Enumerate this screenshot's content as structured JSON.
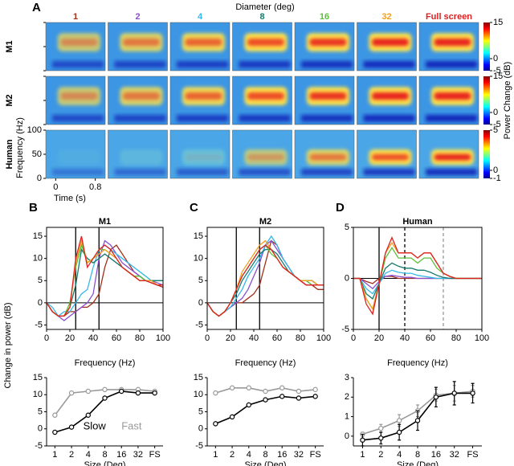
{
  "panel_a": {
    "label": "A",
    "title": "Diameter (deg)",
    "columns": [
      {
        "label": "1",
        "color": "#a0301c"
      },
      {
        "label": "2",
        "color": "#8a4fd0"
      },
      {
        "label": "4",
        "color": "#35b8e8"
      },
      {
        "label": "8",
        "color": "#147a6c"
      },
      {
        "label": "16",
        "color": "#5cc23a"
      },
      {
        "label": "32",
        "color": "#f0a020"
      },
      {
        "label": "Full screen",
        "color": "#e02020"
      }
    ],
    "rows": [
      {
        "label": "M1",
        "clim": [
          -5,
          15
        ],
        "cticks": [
          15,
          0,
          -5
        ]
      },
      {
        "label": "M2",
        "clim": [
          -5,
          15
        ],
        "cticks": [
          15,
          0,
          -5
        ]
      },
      {
        "label": "Human",
        "clim": [
          -1,
          5
        ],
        "cticks": [
          5,
          0,
          -1
        ]
      }
    ],
    "ylabel": "Frequency (Hz)",
    "ylim": [
      0,
      100
    ],
    "yticks": [
      0,
      50,
      100
    ],
    "xlabel": "Time (s)",
    "xlim": [
      -0.2,
      1.0
    ],
    "xticks": [
      0,
      0.8
    ],
    "clabel": "Power Change (dB)"
  },
  "ylabel": "Change in power (dB)",
  "chart_data": [
    {
      "type": "line",
      "label": "B",
      "title": "M1",
      "xlabel": "Frequency (Hz)",
      "x": [
        0,
        5,
        10,
        15,
        20,
        25,
        30,
        35,
        40,
        45,
        50,
        55,
        60,
        65,
        70,
        75,
        80,
        85,
        90,
        95,
        100
      ],
      "xlim": [
        0,
        100
      ],
      "xticks": [
        0,
        20,
        40,
        60,
        80,
        100
      ],
      "ylim": [
        -6,
        17
      ],
      "yticks": [
        -5,
        0,
        5,
        10,
        15
      ],
      "vlines": [
        {
          "value": 25,
          "color": "#000"
        },
        {
          "value": 45,
          "color": "#000"
        }
      ],
      "series": [
        {
          "color": "#a0301c",
          "values": [
            0,
            -2,
            -3,
            -3,
            -2,
            -2,
            -1,
            -1,
            0,
            2,
            8,
            12,
            13,
            11,
            9,
            7,
            6,
            5,
            4.5,
            4,
            3.5
          ]
        },
        {
          "color": "#8a4fd0",
          "values": [
            0,
            -2,
            -3,
            -4,
            -3,
            -2,
            -1,
            0,
            2,
            10,
            14,
            13,
            11,
            9,
            8,
            7,
            6,
            5,
            5,
            4.5,
            4
          ]
        },
        {
          "color": "#35b8e8",
          "values": [
            0,
            -1,
            -3,
            -2,
            -2,
            0,
            2,
            3,
            8,
            12,
            13,
            12,
            11,
            10,
            9,
            8,
            7,
            6,
            5,
            5,
            5
          ]
        },
        {
          "color": "#147a6c",
          "values": [
            0,
            -2,
            -3,
            -3,
            -1,
            4,
            12,
            10,
            9,
            10,
            11,
            10,
            9,
            8,
            7,
            6,
            6,
            5,
            5,
            5,
            5
          ]
        },
        {
          "color": "#5cc23a",
          "values": [
            0,
            -2,
            -3,
            -3,
            0,
            8,
            13,
            9,
            10,
            12,
            12,
            11,
            10,
            8,
            7,
            6,
            6,
            5,
            5,
            4,
            4
          ]
        },
        {
          "color": "#f0a020",
          "values": [
            0,
            -2,
            -3,
            -3,
            -1,
            9,
            14,
            9,
            10,
            11,
            12,
            11,
            10,
            8,
            7,
            6,
            5,
            5,
            5,
            4,
            4
          ]
        },
        {
          "color": "#e02020",
          "values": [
            0,
            -2,
            -3,
            -3,
            -1,
            10,
            15,
            8,
            10,
            12,
            13,
            12,
            10,
            8,
            7,
            6,
            5,
            5,
            4.5,
            4,
            4
          ]
        }
      ]
    },
    {
      "type": "line",
      "label": "C",
      "title": "M2",
      "xlabel": "Frequency (Hz)",
      "x": [
        0,
        5,
        10,
        15,
        20,
        25,
        30,
        35,
        40,
        45,
        50,
        55,
        60,
        65,
        70,
        75,
        80,
        85,
        90,
        95,
        100
      ],
      "xlim": [
        0,
        100
      ],
      "xticks": [
        0,
        20,
        40,
        60,
        80,
        100
      ],
      "ylim": [
        -6,
        17
      ],
      "yticks": [
        -5,
        0,
        5,
        10,
        15
      ],
      "vlines": [
        {
          "value": 25,
          "color": "#000"
        },
        {
          "value": 45,
          "color": "#000"
        }
      ],
      "series": [
        {
          "color": "#a0301c",
          "values": [
            0,
            -2,
            -3,
            -2,
            -1,
            0,
            0,
            1,
            2,
            4,
            9,
            14,
            13,
            10,
            8,
            6,
            5,
            4,
            4,
            3,
            3
          ]
        },
        {
          "color": "#8a4fd0",
          "values": [
            0,
            -2,
            -3,
            -2,
            -1,
            0,
            1,
            3,
            6,
            9,
            13,
            14,
            12,
            10,
            8,
            6,
            5,
            5,
            4,
            4,
            4
          ]
        },
        {
          "color": "#35b8e8",
          "values": [
            0,
            -2,
            -3,
            -2,
            -1,
            1,
            3,
            6,
            8,
            10,
            13,
            15,
            13,
            10,
            8,
            6,
            5,
            5,
            5,
            4,
            4
          ]
        },
        {
          "color": "#147a6c",
          "values": [
            0,
            -2,
            -3,
            -2,
            0,
            2,
            5,
            7,
            9,
            11,
            12,
            12,
            11,
            9,
            7,
            6,
            5,
            5,
            5,
            4,
            4
          ]
        },
        {
          "color": "#5cc23a",
          "values": [
            0,
            -2,
            -3,
            -2,
            0,
            3,
            6,
            8,
            10,
            12,
            13,
            11,
            10,
            8,
            7,
            6,
            5,
            5,
            4,
            4,
            4
          ]
        },
        {
          "color": "#f0a020",
          "values": [
            0,
            -2,
            -3,
            -2,
            0,
            3,
            7,
            9,
            11,
            13,
            14,
            12,
            10,
            8,
            7,
            6,
            5,
            5,
            5,
            4,
            4
          ]
        },
        {
          "color": "#e02020",
          "values": [
            0,
            -2,
            -3,
            -2,
            0,
            3,
            6,
            8,
            10,
            12,
            13,
            12,
            10,
            8,
            7,
            6,
            5,
            4,
            4,
            4,
            4
          ]
        }
      ]
    },
    {
      "type": "line",
      "label": "D",
      "title": "Human",
      "xlabel": "Frequency (Hz)",
      "x": [
        0,
        5,
        10,
        15,
        20,
        25,
        30,
        35,
        40,
        45,
        50,
        55,
        60,
        65,
        70,
        75,
        80,
        85,
        90,
        95,
        100
      ],
      "xlim": [
        0,
        100
      ],
      "xticks": [
        0,
        20,
        40,
        60,
        80,
        100
      ],
      "ylim": [
        -5,
        5
      ],
      "yticks": [
        -5,
        0,
        5
      ],
      "vlines": [
        {
          "value": 20,
          "color": "#000"
        },
        {
          "value": 40,
          "color": "#000",
          "dash": true
        },
        {
          "value": 70,
          "color": "#999",
          "dash": true
        }
      ],
      "series": [
        {
          "color": "#a0301c",
          "values": [
            0,
            0,
            -0.3,
            -0.5,
            0,
            0.2,
            0.2,
            0,
            0,
            0,
            0,
            0,
            0,
            0,
            0,
            0,
            0,
            0,
            0,
            0,
            0
          ]
        },
        {
          "color": "#8a4fd0",
          "values": [
            0,
            0,
            -0.5,
            -1,
            -0.3,
            0.2,
            0.3,
            0.2,
            0.1,
            0.1,
            0,
            0,
            0,
            0,
            0,
            0,
            0,
            0,
            0,
            0,
            0
          ]
        },
        {
          "color": "#35b8e8",
          "values": [
            0,
            0,
            -1,
            -1.5,
            -0.5,
            0.5,
            0.8,
            0.6,
            0.5,
            0.5,
            0.3,
            0.2,
            0.1,
            0,
            0,
            0,
            0,
            0,
            0,
            0,
            0
          ]
        },
        {
          "color": "#147a6c",
          "values": [
            0,
            0,
            -1.5,
            -2,
            -0.5,
            1,
            1.5,
            1.2,
            1,
            1,
            0.8,
            0.8,
            0.6,
            0.3,
            0.1,
            0,
            0,
            0,
            0,
            0,
            0
          ]
        },
        {
          "color": "#5cc23a",
          "values": [
            0,
            0,
            -2,
            -3,
            -0.5,
            2,
            3,
            2,
            2,
            2,
            1.5,
            2,
            2,
            1,
            0.5,
            0.2,
            0,
            0,
            0,
            0,
            0
          ]
        },
        {
          "color": "#f0a020",
          "values": [
            0,
            0,
            -2,
            -3,
            -0.5,
            2.5,
            3.5,
            2.5,
            2.5,
            2.5,
            2,
            2.5,
            2.5,
            1.5,
            0.5,
            0.2,
            0,
            0,
            0,
            0,
            0
          ]
        },
        {
          "color": "#e02020",
          "values": [
            0,
            0,
            -2.5,
            -3.5,
            -0.5,
            2.5,
            4,
            2.5,
            2.5,
            2.5,
            2,
            2.5,
            2.5,
            1.5,
            0.5,
            0.2,
            0,
            0,
            0,
            0,
            0
          ]
        }
      ]
    },
    {
      "type": "dotline",
      "xlabel": "Size (Deg)",
      "categories": [
        "1",
        "2",
        "4",
        "8",
        "16",
        "32",
        "FS"
      ],
      "ylim": [
        -5,
        15
      ],
      "yticks": [
        -5,
        0,
        5,
        10,
        15
      ],
      "series": [
        {
          "name": "Slow",
          "color": "#000",
          "values": [
            -1,
            0.5,
            4,
            9,
            11,
            10.5,
            10.5
          ]
        },
        {
          "name": "Fast",
          "color": "#999",
          "values": [
            4,
            10.5,
            11,
            11.5,
            11.5,
            11.5,
            11
          ]
        }
      ]
    },
    {
      "type": "dotline",
      "xlabel": "Size (Deg)",
      "categories": [
        "1",
        "2",
        "4",
        "8",
        "16",
        "32",
        "FS"
      ],
      "ylim": [
        -5,
        15
      ],
      "yticks": [
        -5,
        0,
        5,
        10,
        15
      ],
      "series": [
        {
          "color": "#000",
          "values": [
            1.5,
            3.5,
            7,
            8.5,
            9.5,
            9,
            9.5
          ]
        },
        {
          "color": "#999",
          "values": [
            10.5,
            12,
            12,
            11,
            12,
            11,
            11.5
          ]
        }
      ]
    },
    {
      "type": "dotline",
      "xlabel": "Size (Deg)",
      "categories": [
        "1",
        "2",
        "4",
        "8",
        "16",
        "32",
        "FS"
      ],
      "ylim": [
        -0.5,
        3
      ],
      "yticks": [
        0,
        1,
        2,
        3
      ],
      "series": [
        {
          "color": "#000",
          "values": [
            -0.2,
            -0.1,
            0.2,
            0.8,
            2,
            2.2,
            2.2
          ],
          "errors": [
            0.3,
            0.3,
            0.4,
            0.5,
            0.5,
            0.6,
            0.5
          ]
        },
        {
          "color": "#999",
          "values": [
            0.1,
            0.4,
            0.8,
            1.3,
            2.1,
            2.2,
            2.3
          ],
          "errors": [
            0.1,
            0.2,
            0.3,
            0.3,
            0.3,
            0.4,
            0.3
          ]
        }
      ]
    }
  ]
}
